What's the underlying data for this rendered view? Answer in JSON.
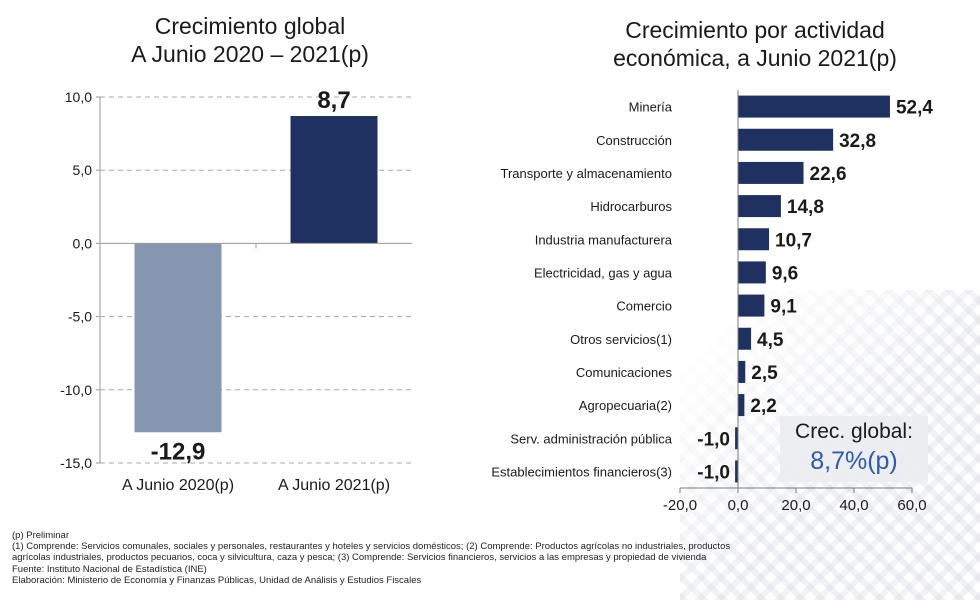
{
  "left_title": [
    "Crecimiento global",
    "A Junio 2020 – 2021(p)"
  ],
  "right_title": [
    "Crecimiento por actividad",
    "económica, a Junio 2021(p)"
  ],
  "callout": {
    "line1": "Crec. global:",
    "line2": "8,7%(p)",
    "color": "#2e5aa8"
  },
  "notes": [
    "(p) Preliminar",
    "(1) Comprende: Servicios comunales, sociales y personales, restaurantes y hoteles y servicios domésticos; (2) Comprende: Productos agrícolas no industriales, productos",
    "agrícolas industriales, productos pecuarios, coca y silvicultura, caza y pesca; (3) Comprende: Servicios financieros, servicios a las empresas y propiedad de vivienda",
    "Fuente: Instituto Nacional de Estadística (INE)",
    "Elaboración: Ministerio de Economía y Finanzas Públicas, Unidad de Análisis y Estudios Fiscales"
  ],
  "chart_data": [
    {
      "type": "bar",
      "orientation": "vertical",
      "title": "Crecimiento global A Junio 2020 – 2021(p)",
      "categories": [
        "A Junio 2020(p)",
        "A Junio 2021(p)"
      ],
      "values": [
        -12.9,
        8.7
      ],
      "value_labels": [
        "-12,9",
        "8,7"
      ],
      "colors": [
        "#8596b0",
        "#1f3160"
      ],
      "ylim": [
        -15,
        10
      ],
      "yticks": [
        10,
        5,
        0,
        -5,
        -10,
        -15
      ],
      "ytick_labels": [
        "10,0",
        "5,0",
        "0,0",
        "-5,0",
        "-10,0",
        "-15,0"
      ],
      "grid": true
    },
    {
      "type": "bar",
      "orientation": "horizontal",
      "title": "Crecimiento por actividad económica, a Junio 2021(p)",
      "categories": [
        "Minería",
        "Construcción",
        "Transporte y almacenamiento",
        "Hidrocarburos",
        "Industria manufacturera",
        "Electricidad, gas y agua",
        "Comercio",
        "Otros servicios(1)",
        "Comunicaciones",
        "Agropecuaria(2)",
        "Serv. administración pública",
        "Establecimientos financieros(3)"
      ],
      "values": [
        52.4,
        32.8,
        22.6,
        14.8,
        10.7,
        9.6,
        9.1,
        4.5,
        2.5,
        2.2,
        -1.0,
        -1.0
      ],
      "value_labels": [
        "52,4",
        "32,8",
        "22,6",
        "14,8",
        "10,7",
        "9,6",
        "9,1",
        "4,5",
        "2,5",
        "2,2",
        "-1,0",
        "-1,0"
      ],
      "color": "#1f3160",
      "xlim": [
        -20,
        60
      ],
      "xticks": [
        -20,
        0,
        20,
        40,
        60
      ],
      "xtick_labels": [
        "-20,0",
        "0,0",
        "20,0",
        "40,0",
        "60,0"
      ],
      "grid": false
    }
  ]
}
